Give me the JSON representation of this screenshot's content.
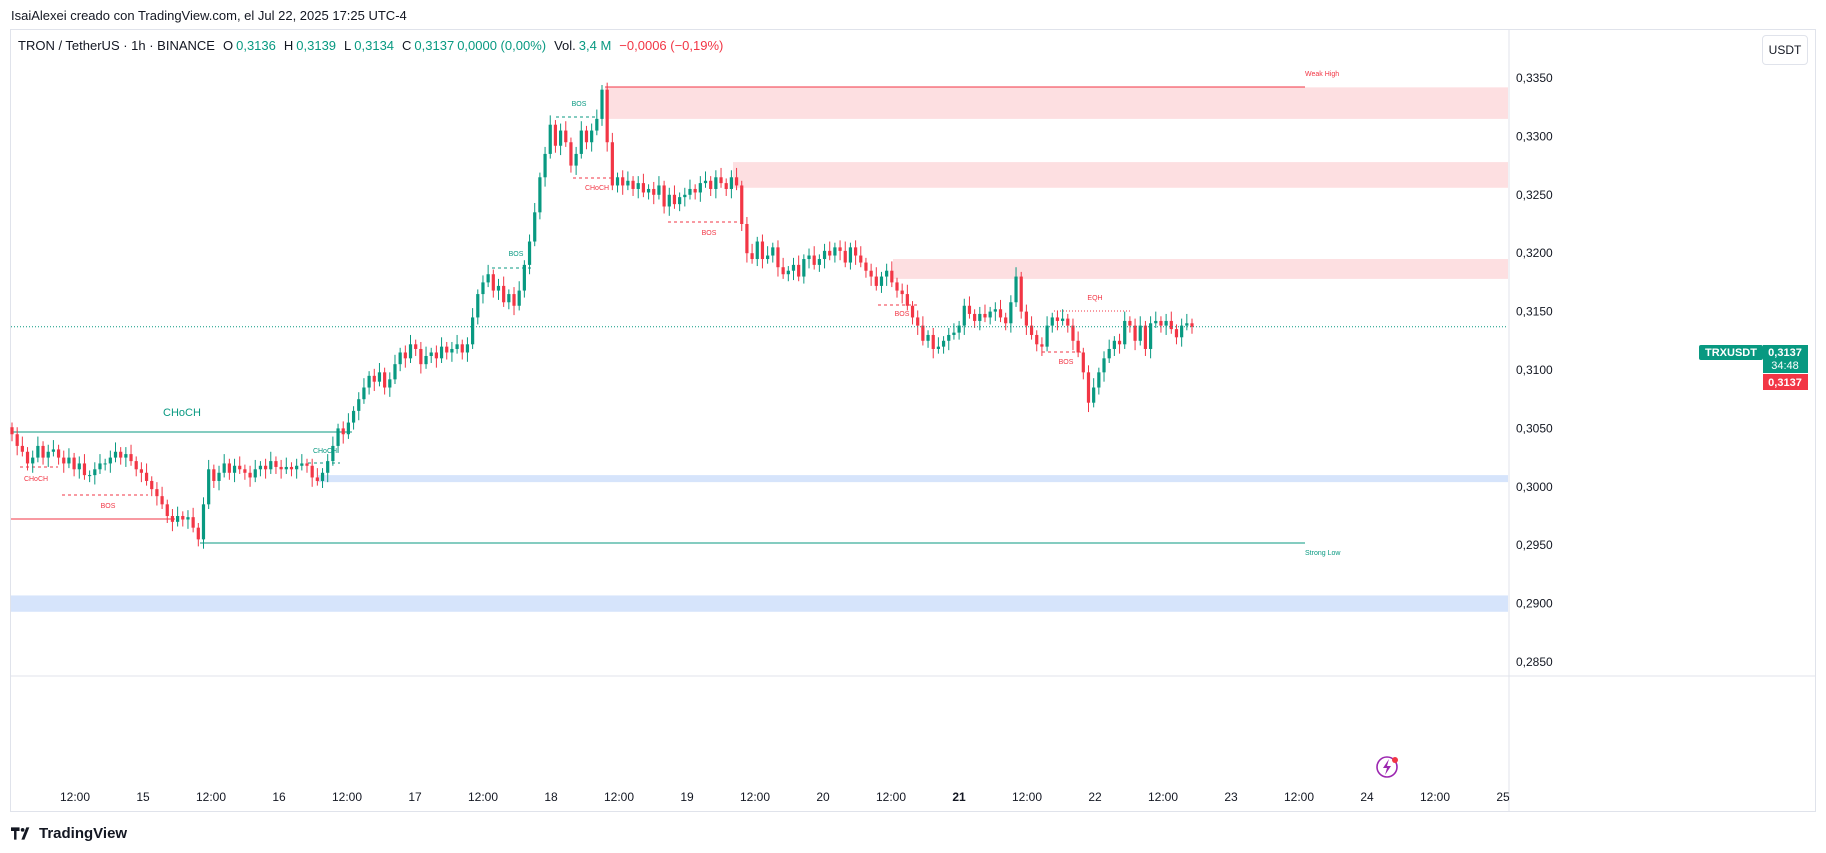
{
  "header": {
    "caption": "IsaiAlexei creado con TradingView.com, el Jul 22, 2025 17:25 UTC-4"
  },
  "legend": {
    "symbol": "TRON / TetherUS · 1h · BINANCE",
    "o_label": "O",
    "o_value": "0,3136",
    "h_label": "H",
    "h_value": "0,3139",
    "l_label": "L",
    "l_value": "0,3134",
    "c_label": "C",
    "c_value": "0,3137",
    "change": "0,0000 (0,00%)",
    "vol_label": "Vol.",
    "vol_value": "3,4 M",
    "extra_change": "−0,0006 (−0,19%)"
  },
  "currency_button": "USDT",
  "price_tag": {
    "symbol": "TRXUSDT",
    "price": "0,3137",
    "countdown": "34:48",
    "last_price": "0,3137"
  },
  "branding": {
    "name": "TradingView",
    "logo_icon": "tradingview-logo-icon"
  },
  "colors": {
    "up": "#089981",
    "down": "#f23645",
    "supply_zone": "#fddfe1",
    "demand_zone": "#d6e4fb",
    "accent": "#2962ff"
  },
  "chart_data": {
    "type": "candlestick",
    "y_axis": {
      "ticks": [
        "0,3350",
        "0,3300",
        "0,3250",
        "0,3200",
        "0,3150",
        "0,3100",
        "0,3050",
        "0,3000",
        "0,2950",
        "0,2900",
        "0,2850"
      ],
      "tick_values": [
        0.335,
        0.33,
        0.325,
        0.32,
        0.315,
        0.31,
        0.305,
        0.3,
        0.295,
        0.29,
        0.285
      ],
      "range": [
        0.2825,
        0.3385
      ]
    },
    "x_axis": {
      "ticks": [
        "12:00",
        "15",
        "12:00",
        "16",
        "12:00",
        "17",
        "12:00",
        "18",
        "12:00",
        "19",
        "12:00",
        "20",
        "12:00",
        "21",
        "12:00",
        "22",
        "12:00",
        "23",
        "12:00",
        "24",
        "12:00",
        "25"
      ],
      "bold_ticks": [
        "21"
      ],
      "range": [
        "Jul 14 06:00",
        "Jul 25 00:00"
      ]
    },
    "last_price": 0.3137,
    "candles_close": [
      0.3045,
      0.3035,
      0.303,
      0.302,
      0.3025,
      0.3035,
      0.3025,
      0.303,
      0.3032,
      0.3025,
      0.302,
      0.3025,
      0.3015,
      0.302,
      0.301,
      0.301,
      0.3015,
      0.302,
      0.302,
      0.3025,
      0.303,
      0.3025,
      0.3028,
      0.3022,
      0.3015,
      0.3012,
      0.3005,
      0.2998,
      0.2992,
      0.2985,
      0.2975,
      0.297,
      0.2975,
      0.2972,
      0.2974,
      0.2965,
      0.2955,
      0.2985,
      0.3015,
      0.3005,
      0.3012,
      0.302,
      0.3012,
      0.3018,
      0.3015,
      0.3012,
      0.3008,
      0.3015,
      0.3018,
      0.3015,
      0.3022,
      0.3017,
      0.3015,
      0.3017,
      0.3015,
      0.3018,
      0.302,
      0.3018,
      0.3008,
      0.3005,
      0.3012,
      0.3022,
      0.3035,
      0.305,
      0.3045,
      0.3055,
      0.3065,
      0.3075,
      0.3085,
      0.3095,
      0.309,
      0.3098,
      0.3085,
      0.3092,
      0.3105,
      0.3115,
      0.311,
      0.3122,
      0.3118,
      0.3105,
      0.3112,
      0.3115,
      0.311,
      0.312,
      0.3115,
      0.3118,
      0.3122,
      0.3115,
      0.3122,
      0.3145,
      0.3165,
      0.3175,
      0.3182,
      0.3168,
      0.3172,
      0.3158,
      0.3165,
      0.3155,
      0.3168,
      0.319,
      0.321,
      0.3235,
      0.3265,
      0.3285,
      0.331,
      0.3292,
      0.3305,
      0.3295,
      0.3275,
      0.3285,
      0.3305,
      0.3295,
      0.3305,
      0.3315,
      0.334,
      0.3295,
      0.3258,
      0.3265,
      0.3258,
      0.3262,
      0.3255,
      0.326,
      0.3252,
      0.3255,
      0.325,
      0.3258,
      0.324,
      0.325,
      0.3242,
      0.3248,
      0.325,
      0.3255,
      0.3252,
      0.326,
      0.3262,
      0.3255,
      0.3265,
      0.326,
      0.3255,
      0.3265,
      0.3258,
      0.3225,
      0.32,
      0.3195,
      0.321,
      0.3195,
      0.3198,
      0.3205,
      0.3188,
      0.3182,
      0.3185,
      0.319,
      0.318,
      0.3195,
      0.3198,
      0.319,
      0.3195,
      0.3202,
      0.3198,
      0.3205,
      0.3202,
      0.3192,
      0.3205,
      0.3198,
      0.3192,
      0.3185,
      0.318,
      0.3172,
      0.318,
      0.3185,
      0.3175,
      0.3168,
      0.3165,
      0.3155,
      0.3145,
      0.3138,
      0.3125,
      0.313,
      0.3118,
      0.312,
      0.3125,
      0.313,
      0.3132,
      0.3138,
      0.3155,
      0.3148,
      0.3142,
      0.3148,
      0.3145,
      0.315,
      0.3152,
      0.3145,
      0.314,
      0.3158,
      0.318,
      0.315,
      0.3138,
      0.313,
      0.3122,
      0.312,
      0.3138,
      0.3145,
      0.3142,
      0.3144,
      0.3138,
      0.3125,
      0.3115,
      0.3098,
      0.3072,
      0.3085,
      0.3098,
      0.311,
      0.3118,
      0.3125,
      0.3122,
      0.3142,
      0.3138,
      0.3125,
      0.3138,
      0.3118,
      0.314,
      0.3142,
      0.3138,
      0.3142,
      0.3135,
      0.3128,
      0.3138,
      0.314,
      0.3137
    ],
    "annotations": [
      {
        "text": "Weak High",
        "color": "#f23645"
      },
      {
        "text": "Strong Low",
        "color": "#089981"
      },
      {
        "text": "CHoCH",
        "color": "#089981"
      },
      {
        "text": "CHoCH",
        "color": "#089981"
      },
      {
        "text": "CHoCH",
        "color": "#f23645"
      },
      {
        "text": "CHoCH",
        "color": "#f23645"
      },
      {
        "text": "BOS",
        "color": "#f23645"
      },
      {
        "text": "BOS",
        "color": "#089981"
      },
      {
        "text": "BOS",
        "color": "#089981"
      },
      {
        "text": "BOS",
        "color": "#f23645"
      },
      {
        "text": "BOS",
        "color": "#f23645"
      },
      {
        "text": "BOS",
        "color": "#f23645"
      },
      {
        "text": "EQH",
        "color": "#f23645"
      }
    ],
    "zones": [
      {
        "kind": "supply",
        "top": 0.3342,
        "bottom": 0.3315
      },
      {
        "kind": "supply",
        "top": 0.3278,
        "bottom": 0.3256
      },
      {
        "kind": "supply",
        "top": 0.3195,
        "bottom": 0.3178
      },
      {
        "kind": "demand",
        "top": 0.301,
        "bottom": 0.3004
      },
      {
        "kind": "demand",
        "top": 0.2907,
        "bottom": 0.2893
      }
    ]
  }
}
